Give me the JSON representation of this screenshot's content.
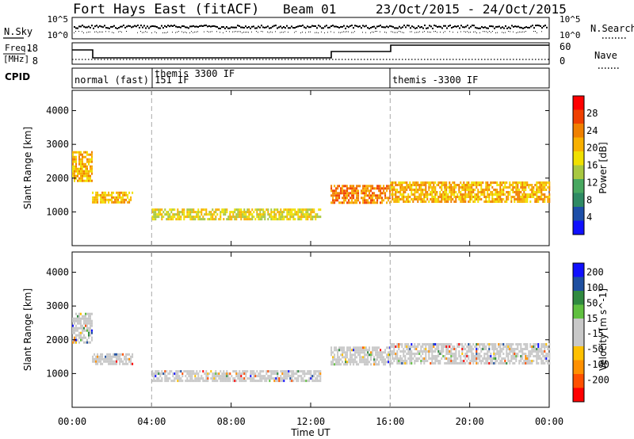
{
  "header": {
    "station": "Fort Hays East (fitACF)",
    "beam": "Beam 01",
    "date_range": "23/Oct/2015 - 24/Oct/2015"
  },
  "noise_panel": {
    "left_label": "N.Sky",
    "right_label": "N.Search",
    "left_ticks": [
      "10^5",
      "10^0"
    ],
    "right_ticks": [
      "10^5",
      "10^0"
    ]
  },
  "freq_panel": {
    "left_label_1": "Freq.",
    "left_label_2": "[MHz]",
    "right_label": "Nave",
    "left_ticks": [
      "18",
      "8"
    ],
    "right_ticks": [
      "60",
      "0"
    ]
  },
  "cpid_panel": {
    "label": "CPID",
    "modes": [
      {
        "text": "normal (fast) 151 IF",
        "start_hour": 0
      },
      {
        "text": "themis 3300 IF",
        "start_hour": 4
      },
      {
        "text": "themis -3300 IF",
        "start_hour": 16
      }
    ]
  },
  "colors": {
    "power_scale": [
      "#1010ff",
      "#1d4fa8",
      "#2e8a64",
      "#48a860",
      "#a8c840",
      "#f0e000",
      "#f8b000",
      "#f08000",
      "#f04000",
      "#ff0000"
    ],
    "velocity_scale": [
      "#ff0000",
      "#ff5000",
      "#ff9000",
      "#ffc000",
      "#c8c8c8",
      "#c8c8c8",
      "#60c040",
      "#308a40",
      "#1e4fa0",
      "#1010ff"
    ]
  },
  "chart_data": [
    {
      "type": "heatmap",
      "name": "Power",
      "ylabel": "Slant Range [km]",
      "xlabel": "Time UT",
      "xlim": [
        0,
        24
      ],
      "ylim": [
        0,
        4600
      ],
      "x_ticks": [
        "00:00",
        "04:00",
        "08:00",
        "12:00",
        "16:00",
        "20:00",
        "00:00"
      ],
      "y_ticks": [
        1000,
        2000,
        3000,
        4000
      ],
      "colorbar_label": "Power [dB]",
      "colorbar_ticks": [
        "4",
        "8",
        "12",
        "16",
        "20",
        "24",
        "28"
      ],
      "vlines_hours": [
        4,
        16
      ],
      "echo_regions": [
        {
          "t_start": 0.0,
          "t_end": 1.0,
          "r_start": 1900,
          "r_end": 2800,
          "level": 6
        },
        {
          "t_start": 1.0,
          "t_end": 3.0,
          "r_start": 1300,
          "r_end": 1600,
          "level": 6
        },
        {
          "t_start": 4.0,
          "t_end": 12.5,
          "r_start": 800,
          "r_end": 1100,
          "level": 5
        },
        {
          "t_start": 13.0,
          "t_end": 16.0,
          "r_start": 1300,
          "r_end": 1800,
          "level": 7
        },
        {
          "t_start": 16.0,
          "t_end": 24.0,
          "r_start": 1300,
          "r_end": 1900,
          "level": 6
        }
      ]
    },
    {
      "type": "heatmap",
      "name": "Velocity",
      "ylabel": "Slant Range [km]",
      "xlabel": "Time UT",
      "xlim": [
        0,
        24
      ],
      "ylim": [
        0,
        4600
      ],
      "x_ticks": [
        "00:00",
        "04:00",
        "08:00",
        "12:00",
        "16:00",
        "20:00",
        "00:00"
      ],
      "y_ticks": [
        1000,
        2000,
        3000,
        4000
      ],
      "colorbar_label": "Velocity [m s^-1]",
      "colorbar_ticks": [
        "200",
        "100",
        "50",
        "15",
        "-15",
        "-50",
        "-100",
        "-200"
      ],
      "vlines_hours": [
        4,
        16
      ],
      "echo_regions": [
        {
          "t_start": 0.0,
          "t_end": 1.0,
          "r_start": 1900,
          "r_end": 2800,
          "level": 4
        },
        {
          "t_start": 1.0,
          "t_end": 3.0,
          "r_start": 1300,
          "r_end": 1600,
          "level": 4
        },
        {
          "t_start": 4.0,
          "t_end": 12.5,
          "r_start": 800,
          "r_end": 1100,
          "level": 4
        },
        {
          "t_start": 13.0,
          "t_end": 16.0,
          "r_start": 1300,
          "r_end": 1800,
          "level": 4
        },
        {
          "t_start": 16.0,
          "t_end": 24.0,
          "r_start": 1300,
          "r_end": 1900,
          "level": 4
        }
      ]
    }
  ]
}
